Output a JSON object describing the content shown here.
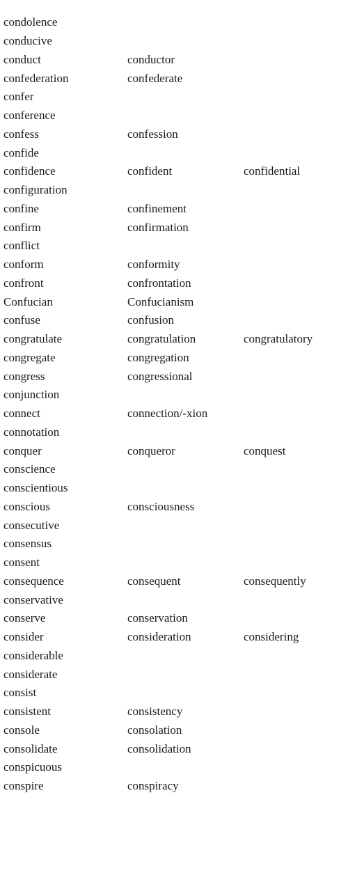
{
  "rows": [
    [
      "condolence",
      "",
      ""
    ],
    [
      "conducive",
      "",
      ""
    ],
    [
      "conduct",
      "conductor",
      ""
    ],
    [
      "confederation",
      "confederate",
      ""
    ],
    [
      "confer",
      "",
      ""
    ],
    [
      "conference",
      "",
      ""
    ],
    [
      "confess",
      "confession",
      ""
    ],
    [
      "confide",
      "",
      ""
    ],
    [
      "confidence",
      "confident",
      "confidential"
    ],
    [
      "configuration",
      "",
      ""
    ],
    [
      "confine",
      "confinement",
      ""
    ],
    [
      "confirm",
      "confirmation",
      ""
    ],
    [
      "conflict",
      "",
      ""
    ],
    [
      "conform",
      "conformity",
      ""
    ],
    [
      "confront",
      "confrontation",
      ""
    ],
    [
      "Confucian",
      "Confucianism",
      ""
    ],
    [
      "confuse",
      "confusion",
      ""
    ],
    [
      "congratulate",
      "congratulation",
      "congratulatory"
    ],
    [
      "congregate",
      "congregation",
      ""
    ],
    [
      "congress",
      "congressional",
      ""
    ],
    [
      "conjunction",
      "",
      ""
    ],
    [
      "connect",
      "connection/-xion",
      ""
    ],
    [
      "connotation",
      "",
      ""
    ],
    [
      "conquer",
      "conqueror",
      "conquest"
    ],
    [
      "conscience",
      "",
      ""
    ],
    [
      "conscientious",
      "",
      ""
    ],
    [
      "conscious",
      "consciousness",
      ""
    ],
    [
      "consecutive",
      "",
      ""
    ],
    [
      "consensus",
      "",
      ""
    ],
    [
      "consent",
      "",
      ""
    ],
    [
      "consequence",
      "consequent",
      "consequently"
    ],
    [
      "conservative",
      "",
      ""
    ],
    [
      "conserve",
      "conservation",
      ""
    ],
    [
      "consider",
      "consideration",
      "considering"
    ],
    [
      "considerable",
      "",
      ""
    ],
    [
      "considerate",
      "",
      ""
    ],
    [
      "consist",
      "",
      ""
    ],
    [
      "consistent",
      "consistency",
      ""
    ],
    [
      "console",
      "consolation",
      ""
    ],
    [
      "consolidate",
      "consolidation",
      ""
    ],
    [
      "conspicuous",
      "",
      ""
    ],
    [
      "conspire",
      "conspiracy",
      ""
    ]
  ]
}
